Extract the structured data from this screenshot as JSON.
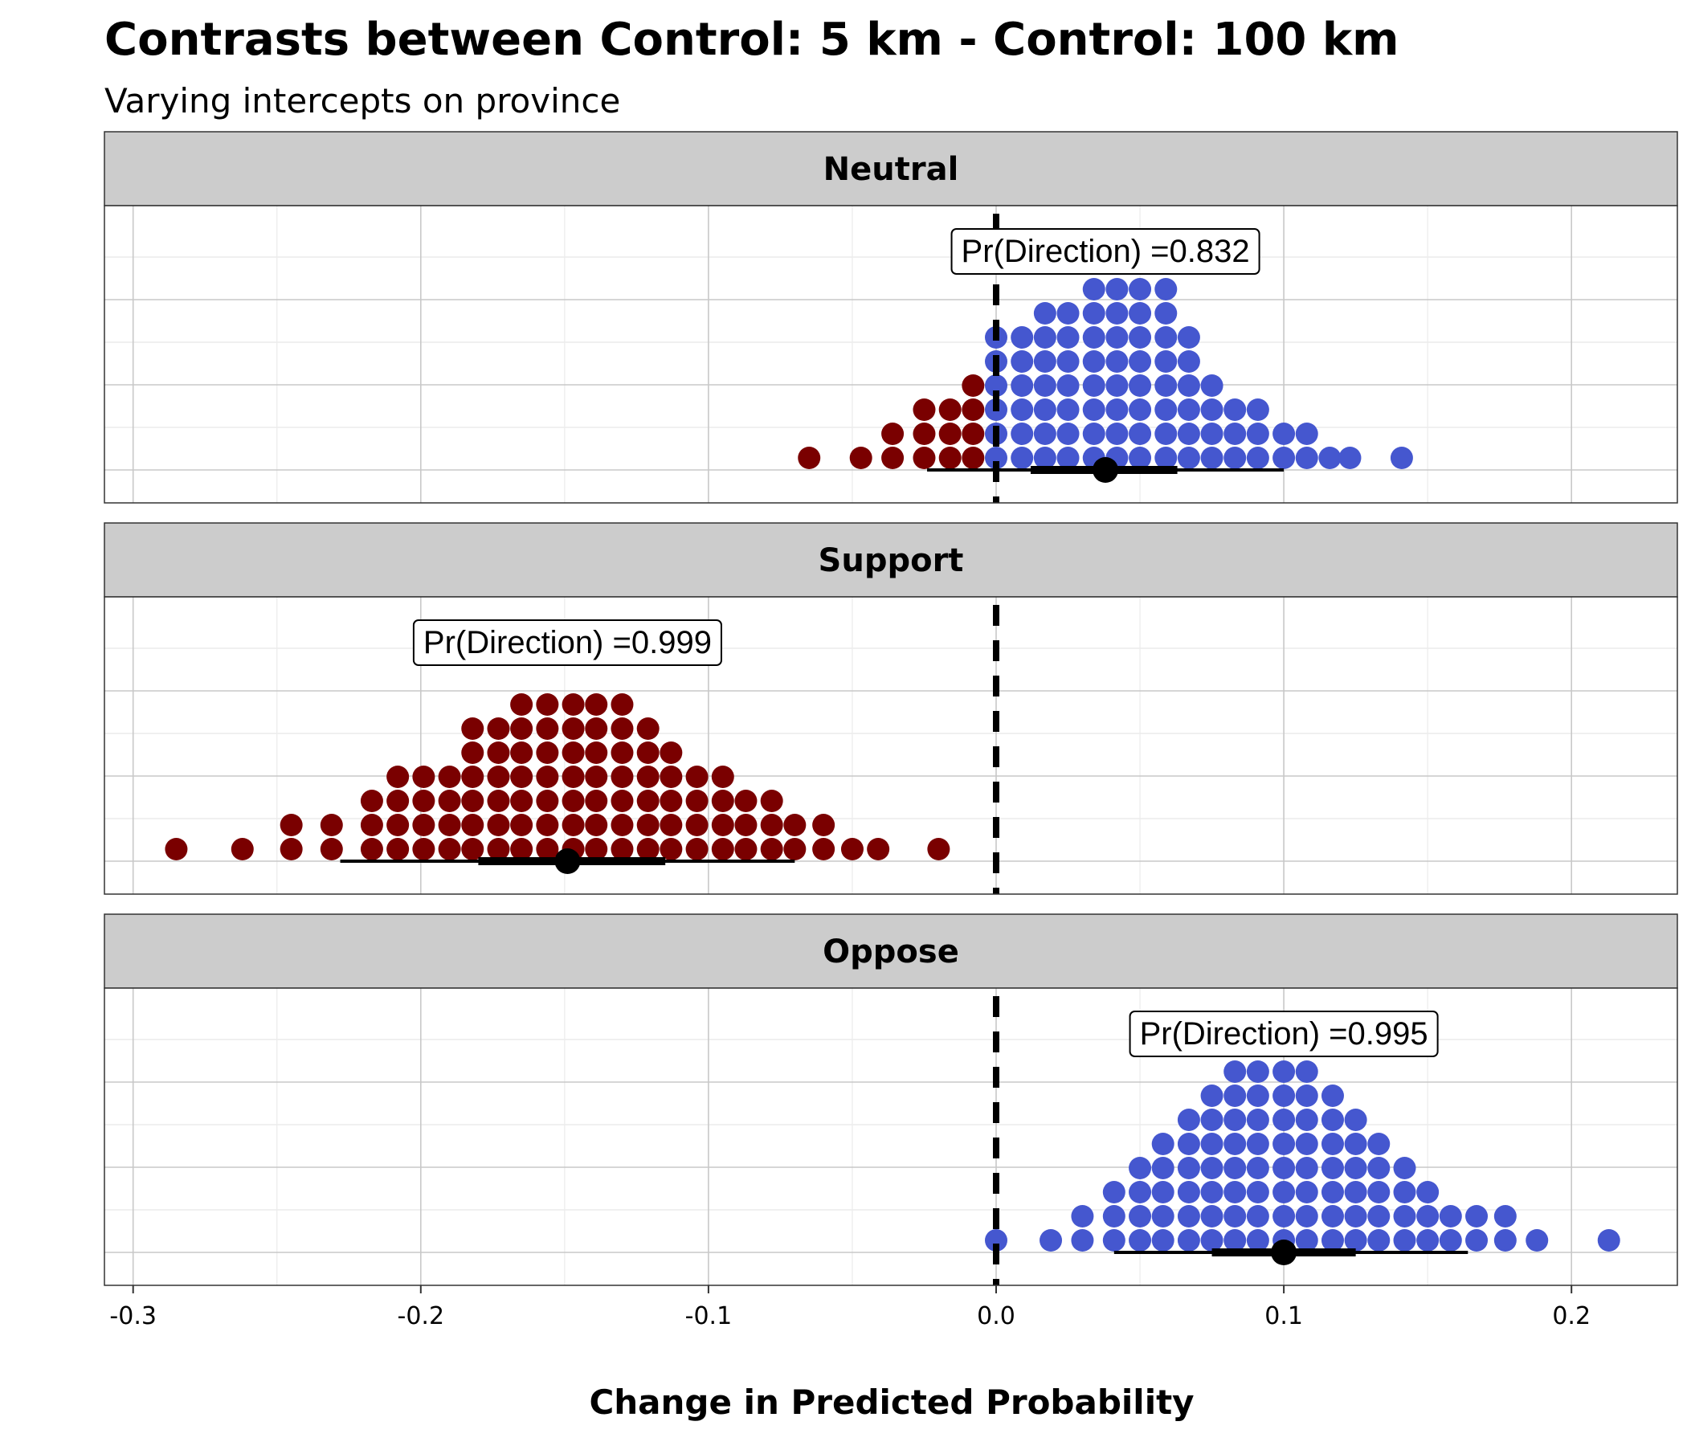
{
  "chart_data": {
    "type": "dotplot",
    "title": "Contrasts between Control: 5 km - Control: 100 km",
    "subtitle": "Varying intercepts on province",
    "xlabel": "Change in Predicted Probability",
    "ylabel": "",
    "xlim": [
      -0.31,
      0.24
    ],
    "x_ticks": [
      -0.3,
      -0.2,
      -0.1,
      0.0,
      0.1,
      0.2
    ],
    "x_tick_labels": [
      "-0.3",
      "-0.2",
      "-0.1",
      "0.0",
      "0.1",
      "0.2"
    ],
    "reference_line": 0.0,
    "grid": true,
    "colors": {
      "positive": "#4557cf",
      "negative": "#7a0000",
      "strip_fill": "#cccccc",
      "point": "#000000"
    },
    "facets": [
      {
        "label": "Neutral",
        "pd_label": "Pr(Direction) =0.832",
        "pd_x": 0.038,
        "estimate": 0.038,
        "interval_inner": [
          0.012,
          0.063
        ],
        "interval_outer": [
          -0.024,
          0.1
        ],
        "dot_columns": [
          {
            "x": -0.065,
            "n": 1
          },
          {
            "x": -0.047,
            "n": 1
          },
          {
            "x": -0.036,
            "n": 2
          },
          {
            "x": -0.025,
            "n": 3
          },
          {
            "x": -0.016,
            "n": 3
          },
          {
            "x": -0.008,
            "n": 4
          },
          {
            "x": 0.0,
            "n": 6
          },
          {
            "x": 0.009,
            "n": 6
          },
          {
            "x": 0.017,
            "n": 7
          },
          {
            "x": 0.025,
            "n": 7
          },
          {
            "x": 0.034,
            "n": 8
          },
          {
            "x": 0.042,
            "n": 8
          },
          {
            "x": 0.05,
            "n": 8
          },
          {
            "x": 0.059,
            "n": 8
          },
          {
            "x": 0.067,
            "n": 6
          },
          {
            "x": 0.075,
            "n": 4
          },
          {
            "x": 0.083,
            "n": 3
          },
          {
            "x": 0.091,
            "n": 3
          },
          {
            "x": 0.1,
            "n": 2
          },
          {
            "x": 0.108,
            "n": 2
          },
          {
            "x": 0.116,
            "n": 1
          },
          {
            "x": 0.123,
            "n": 1
          },
          {
            "x": 0.141,
            "n": 1
          }
        ]
      },
      {
        "label": "Support",
        "pd_label": "Pr(Direction) =0.999",
        "pd_x": -0.149,
        "estimate": -0.149,
        "interval_inner": [
          -0.18,
          -0.115
        ],
        "interval_outer": [
          -0.228,
          -0.07
        ],
        "dot_columns": [
          {
            "x": -0.285,
            "n": 1
          },
          {
            "x": -0.262,
            "n": 1
          },
          {
            "x": -0.245,
            "n": 2
          },
          {
            "x": -0.231,
            "n": 2
          },
          {
            "x": -0.217,
            "n": 3
          },
          {
            "x": -0.208,
            "n": 4
          },
          {
            "x": -0.199,
            "n": 4
          },
          {
            "x": -0.19,
            "n": 4
          },
          {
            "x": -0.182,
            "n": 6
          },
          {
            "x": -0.173,
            "n": 6
          },
          {
            "x": -0.165,
            "n": 7
          },
          {
            "x": -0.156,
            "n": 7
          },
          {
            "x": -0.147,
            "n": 7
          },
          {
            "x": -0.139,
            "n": 7
          },
          {
            "x": -0.13,
            "n": 7
          },
          {
            "x": -0.121,
            "n": 6
          },
          {
            "x": -0.113,
            "n": 5
          },
          {
            "x": -0.104,
            "n": 4
          },
          {
            "x": -0.095,
            "n": 4
          },
          {
            "x": -0.087,
            "n": 3
          },
          {
            "x": -0.078,
            "n": 3
          },
          {
            "x": -0.07,
            "n": 2
          },
          {
            "x": -0.06,
            "n": 2
          },
          {
            "x": -0.05,
            "n": 1
          },
          {
            "x": -0.041,
            "n": 1
          },
          {
            "x": -0.02,
            "n": 1
          }
        ]
      },
      {
        "label": "Oppose",
        "pd_label": "Pr(Direction) =0.995",
        "pd_x": 0.1,
        "estimate": 0.1,
        "interval_inner": [
          0.075,
          0.125
        ],
        "interval_outer": [
          0.041,
          0.164
        ],
        "dot_columns": [
          {
            "x": 0.0,
            "n": 1
          },
          {
            "x": 0.019,
            "n": 1
          },
          {
            "x": 0.03,
            "n": 2
          },
          {
            "x": 0.041,
            "n": 3
          },
          {
            "x": 0.05,
            "n": 4
          },
          {
            "x": 0.058,
            "n": 5
          },
          {
            "x": 0.067,
            "n": 6
          },
          {
            "x": 0.075,
            "n": 7
          },
          {
            "x": 0.083,
            "n": 8
          },
          {
            "x": 0.091,
            "n": 8
          },
          {
            "x": 0.1,
            "n": 8
          },
          {
            "x": 0.108,
            "n": 8
          },
          {
            "x": 0.117,
            "n": 7
          },
          {
            "x": 0.125,
            "n": 6
          },
          {
            "x": 0.133,
            "n": 5
          },
          {
            "x": 0.142,
            "n": 4
          },
          {
            "x": 0.15,
            "n": 3
          },
          {
            "x": 0.158,
            "n": 2
          },
          {
            "x": 0.167,
            "n": 2
          },
          {
            "x": 0.177,
            "n": 2
          },
          {
            "x": 0.188,
            "n": 1
          },
          {
            "x": 0.213,
            "n": 1
          }
        ]
      }
    ]
  }
}
